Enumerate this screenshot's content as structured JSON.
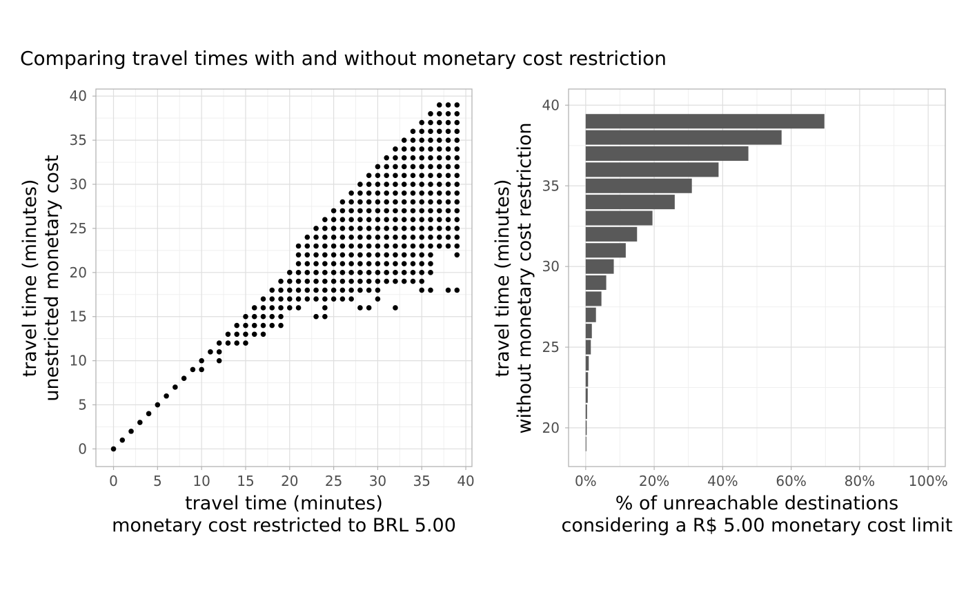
{
  "title": "Comparing travel times with and without monetary cost restriction",
  "colors": {
    "background": "#ffffff",
    "panel_border": "#b3b3b3",
    "grid_major": "#dedede",
    "grid_minor": "#efefef",
    "tick_text": "#4d4d4d",
    "point": "#000000",
    "bar": "#595959"
  },
  "chart_data": [
    {
      "type": "scatter",
      "xlabel": [
        "travel time (minutes)",
        "monetary cost restricted to BRL 5.00"
      ],
      "ylabel": [
        "travel time (minutes)",
        "unestricted monetary cost"
      ],
      "xlim": [
        -2,
        40.7
      ],
      "ylim": [
        -2,
        40.8
      ],
      "xticks": [
        0,
        5,
        10,
        15,
        20,
        25,
        30,
        35,
        40
      ],
      "yticks": [
        0,
        5,
        10,
        15,
        20,
        25,
        30,
        35,
        40
      ],
      "grid": true,
      "band_rows": [
        [
          22,
          21,
          23
        ],
        [
          23,
          21,
          24
        ],
        [
          24,
          22,
          25
        ],
        [
          25,
          23,
          26
        ],
        [
          26,
          24,
          27
        ],
        [
          27,
          25,
          28
        ],
        [
          28,
          26,
          29
        ],
        [
          29,
          27,
          30
        ],
        [
          30,
          28,
          31
        ],
        [
          31,
          29,
          32
        ],
        [
          32,
          30,
          33
        ],
        [
          33,
          31,
          34
        ],
        [
          34,
          32,
          35
        ],
        [
          35,
          33,
          36
        ],
        [
          36,
          34,
          37
        ],
        [
          37,
          35,
          38
        ],
        [
          38,
          36,
          39
        ],
        [
          39,
          37,
          39
        ]
      ],
      "extra_points": [
        [
          0,
          0
        ],
        [
          1,
          1
        ],
        [
          2,
          2
        ],
        [
          3,
          3
        ],
        [
          4,
          4
        ],
        [
          5,
          5
        ],
        [
          6,
          6
        ],
        [
          7,
          7
        ],
        [
          8,
          8
        ],
        [
          9,
          9
        ],
        [
          10,
          9
        ],
        [
          10,
          10
        ],
        [
          11,
          11
        ],
        [
          12,
          10
        ],
        [
          12,
          11
        ],
        [
          12,
          12
        ],
        [
          13,
          12
        ],
        [
          13,
          13
        ],
        [
          14,
          12
        ],
        [
          14,
          13
        ],
        [
          14,
          14
        ],
        [
          15,
          12
        ],
        [
          15,
          13
        ],
        [
          15,
          14
        ],
        [
          15,
          15
        ],
        [
          16,
          13
        ],
        [
          16,
          14
        ],
        [
          16,
          15
        ],
        [
          16,
          16
        ],
        [
          17,
          13
        ],
        [
          17,
          14
        ],
        [
          17,
          15
        ],
        [
          17,
          16
        ],
        [
          17,
          17
        ],
        [
          18,
          14
        ],
        [
          18,
          15
        ],
        [
          18,
          16
        ],
        [
          18,
          17
        ],
        [
          18,
          18
        ],
        [
          19,
          14
        ],
        [
          19,
          15
        ],
        [
          19,
          16
        ],
        [
          19,
          17
        ],
        [
          19,
          18
        ],
        [
          19,
          19
        ],
        [
          20,
          16
        ],
        [
          20,
          17
        ],
        [
          20,
          18
        ],
        [
          20,
          19
        ],
        [
          20,
          20
        ],
        [
          21,
          16
        ],
        [
          21,
          17
        ],
        [
          21,
          18
        ],
        [
          21,
          19
        ],
        [
          21,
          20
        ],
        [
          21,
          21
        ],
        [
          22,
          17
        ],
        [
          22,
          18
        ],
        [
          22,
          19
        ],
        [
          22,
          20
        ],
        [
          22,
          21
        ],
        [
          22,
          22
        ],
        [
          23,
          15
        ],
        [
          23,
          17
        ],
        [
          23,
          18
        ],
        [
          23,
          19
        ],
        [
          23,
          20
        ],
        [
          23,
          21
        ],
        [
          23,
          22
        ],
        [
          23,
          23
        ],
        [
          24,
          15
        ],
        [
          24,
          16
        ],
        [
          24,
          17
        ],
        [
          24,
          18
        ],
        [
          24,
          19
        ],
        [
          24,
          20
        ],
        [
          24,
          21
        ],
        [
          24,
          22
        ],
        [
          24,
          23
        ],
        [
          24,
          24
        ],
        [
          25,
          17
        ],
        [
          25,
          18
        ],
        [
          25,
          19
        ],
        [
          25,
          20
        ],
        [
          25,
          21
        ],
        [
          25,
          22
        ],
        [
          25,
          23
        ],
        [
          25,
          24
        ],
        [
          25,
          25
        ],
        [
          26,
          17
        ],
        [
          26,
          18
        ],
        [
          26,
          19
        ],
        [
          26,
          20
        ],
        [
          26,
          21
        ],
        [
          26,
          22
        ],
        [
          26,
          23
        ],
        [
          26,
          24
        ],
        [
          26,
          25
        ],
        [
          26,
          26
        ],
        [
          27,
          17
        ],
        [
          27,
          18
        ],
        [
          27,
          19
        ],
        [
          27,
          20
        ],
        [
          27,
          21
        ],
        [
          27,
          22
        ],
        [
          27,
          23
        ],
        [
          27,
          24
        ],
        [
          27,
          25
        ],
        [
          27,
          26
        ],
        [
          27,
          27
        ],
        [
          28,
          16
        ],
        [
          28,
          18
        ],
        [
          28,
          19
        ],
        [
          28,
          20
        ],
        [
          28,
          21
        ],
        [
          28,
          22
        ],
        [
          28,
          23
        ],
        [
          28,
          24
        ],
        [
          28,
          25
        ],
        [
          28,
          26
        ],
        [
          28,
          27
        ],
        [
          28,
          28
        ],
        [
          29,
          16
        ],
        [
          29,
          18
        ],
        [
          29,
          19
        ],
        [
          29,
          20
        ],
        [
          29,
          21
        ],
        [
          29,
          22
        ],
        [
          29,
          23
        ],
        [
          29,
          24
        ],
        [
          29,
          25
        ],
        [
          29,
          26
        ],
        [
          29,
          27
        ],
        [
          29,
          28
        ],
        [
          29,
          29
        ],
        [
          30,
          17
        ],
        [
          30,
          18
        ],
        [
          30,
          19
        ],
        [
          30,
          20
        ],
        [
          30,
          21
        ],
        [
          30,
          22
        ],
        [
          30,
          23
        ],
        [
          30,
          24
        ],
        [
          30,
          25
        ],
        [
          30,
          26
        ],
        [
          30,
          27
        ],
        [
          30,
          28
        ],
        [
          30,
          29
        ],
        [
          30,
          30
        ],
        [
          31,
          19
        ],
        [
          31,
          20
        ],
        [
          31,
          21
        ],
        [
          31,
          22
        ],
        [
          31,
          23
        ],
        [
          31,
          24
        ],
        [
          31,
          25
        ],
        [
          31,
          26
        ],
        [
          31,
          27
        ],
        [
          31,
          28
        ],
        [
          31,
          29
        ],
        [
          31,
          30
        ],
        [
          31,
          31
        ],
        [
          32,
          16
        ],
        [
          32,
          19
        ],
        [
          32,
          20
        ],
        [
          32,
          21
        ],
        [
          32,
          22
        ],
        [
          32,
          23
        ],
        [
          32,
          24
        ],
        [
          32,
          25
        ],
        [
          32,
          26
        ],
        [
          32,
          27
        ],
        [
          32,
          28
        ],
        [
          32,
          29
        ],
        [
          32,
          30
        ],
        [
          32,
          31
        ],
        [
          32,
          32
        ],
        [
          33,
          19
        ],
        [
          33,
          20
        ],
        [
          33,
          21
        ],
        [
          33,
          22
        ],
        [
          33,
          23
        ],
        [
          33,
          24
        ],
        [
          33,
          25
        ],
        [
          33,
          26
        ],
        [
          33,
          27
        ],
        [
          33,
          28
        ],
        [
          33,
          29
        ],
        [
          33,
          30
        ],
        [
          33,
          31
        ],
        [
          33,
          32
        ],
        [
          33,
          33
        ],
        [
          34,
          19
        ],
        [
          34,
          20
        ],
        [
          34,
          21
        ],
        [
          34,
          22
        ],
        [
          34,
          23
        ],
        [
          34,
          24
        ],
        [
          34,
          25
        ],
        [
          34,
          26
        ],
        [
          34,
          27
        ],
        [
          34,
          28
        ],
        [
          34,
          29
        ],
        [
          34,
          30
        ],
        [
          34,
          31
        ],
        [
          34,
          32
        ],
        [
          34,
          33
        ],
        [
          34,
          34
        ],
        [
          35,
          18
        ],
        [
          35,
          19
        ],
        [
          35,
          20
        ],
        [
          35,
          21
        ],
        [
          35,
          22
        ],
        [
          35,
          23
        ],
        [
          35,
          24
        ],
        [
          35,
          25
        ],
        [
          35,
          26
        ],
        [
          35,
          27
        ],
        [
          35,
          28
        ],
        [
          35,
          29
        ],
        [
          35,
          30
        ],
        [
          35,
          31
        ],
        [
          35,
          32
        ],
        [
          35,
          33
        ],
        [
          35,
          34
        ],
        [
          35,
          35
        ],
        [
          36,
          18
        ],
        [
          36,
          20
        ],
        [
          36,
          21
        ],
        [
          36,
          22
        ],
        [
          36,
          23
        ],
        [
          36,
          24
        ],
        [
          36,
          25
        ],
        [
          36,
          26
        ],
        [
          36,
          27
        ],
        [
          36,
          28
        ],
        [
          36,
          29
        ],
        [
          36,
          30
        ],
        [
          36,
          31
        ],
        [
          36,
          32
        ],
        [
          36,
          33
        ],
        [
          36,
          34
        ],
        [
          36,
          35
        ],
        [
          36,
          36
        ],
        [
          37,
          23
        ],
        [
          37,
          24
        ],
        [
          37,
          25
        ],
        [
          37,
          26
        ],
        [
          37,
          27
        ],
        [
          37,
          28
        ],
        [
          37,
          29
        ],
        [
          37,
          30
        ],
        [
          37,
          31
        ],
        [
          37,
          32
        ],
        [
          37,
          33
        ],
        [
          37,
          34
        ],
        [
          37,
          35
        ],
        [
          37,
          36
        ],
        [
          37,
          37
        ],
        [
          38,
          18
        ],
        [
          38,
          23
        ],
        [
          38,
          24
        ],
        [
          38,
          25
        ],
        [
          38,
          26
        ],
        [
          38,
          27
        ],
        [
          38,
          28
        ],
        [
          38,
          29
        ],
        [
          38,
          30
        ],
        [
          38,
          31
        ],
        [
          38,
          32
        ],
        [
          38,
          33
        ],
        [
          38,
          34
        ],
        [
          38,
          35
        ],
        [
          38,
          36
        ],
        [
          38,
          37
        ],
        [
          38,
          38
        ],
        [
          39,
          18
        ],
        [
          39,
          22
        ],
        [
          39,
          23
        ],
        [
          39,
          24
        ],
        [
          39,
          25
        ],
        [
          39,
          26
        ],
        [
          39,
          27
        ],
        [
          39,
          28
        ],
        [
          39,
          29
        ],
        [
          39,
          30
        ],
        [
          39,
          31
        ],
        [
          39,
          32
        ],
        [
          39,
          33
        ],
        [
          39,
          34
        ],
        [
          39,
          35
        ],
        [
          39,
          36
        ],
        [
          39,
          37
        ],
        [
          39,
          38
        ],
        [
          39,
          39
        ]
      ]
    },
    {
      "type": "bar",
      "orientation": "horizontal",
      "xlabel": [
        "% of unreachable destinations",
        "considering a R$ 5.00 monetary cost limit"
      ],
      "ylabel": [
        "travel time (minutes)",
        "without monetary cost restriction"
      ],
      "xlim": [
        -0.05,
        1.05
      ],
      "ylim": [
        17.6,
        41
      ],
      "xticks": [
        0,
        0.2,
        0.4,
        0.6,
        0.8,
        1.0
      ],
      "xtick_labels": [
        "0%",
        "20%",
        "40%",
        "60%",
        "80%",
        "100%"
      ],
      "yticks": [
        20,
        25,
        30,
        35,
        40
      ],
      "grid": true,
      "categories": [
        19,
        20,
        21,
        22,
        23,
        24,
        25,
        26,
        27,
        28,
        29,
        30,
        31,
        32,
        33,
        34,
        35,
        36,
        37,
        38,
        39
      ],
      "values": [
        0.002,
        0.003,
        0.004,
        0.006,
        0.007,
        0.009,
        0.015,
        0.018,
        0.03,
        0.046,
        0.06,
        0.082,
        0.117,
        0.15,
        0.195,
        0.26,
        0.31,
        0.388,
        0.475,
        0.572,
        0.697
      ]
    }
  ]
}
